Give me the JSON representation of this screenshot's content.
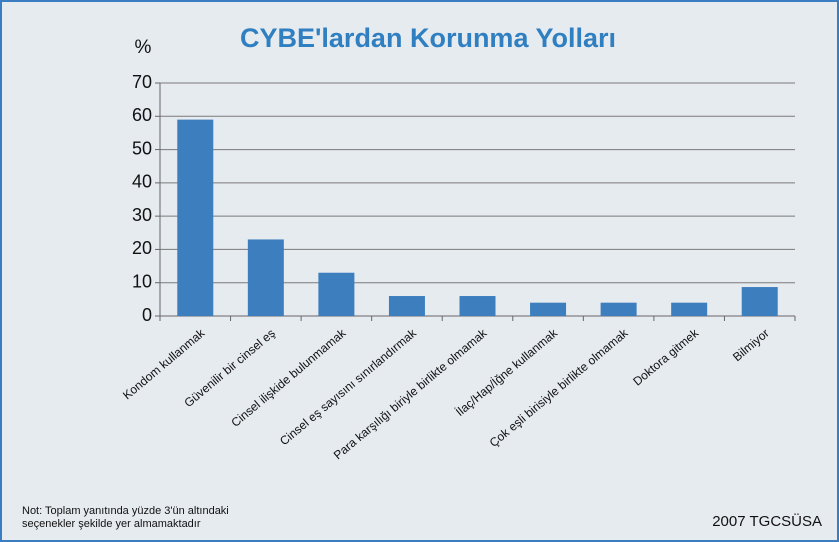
{
  "chart_data": {
    "type": "bar",
    "title": "CYBE'lardan Korunma Yolları",
    "y_label": "%",
    "categories": [
      "Kondom kullanmak",
      "Güvenilir bir cinsel eş",
      "Cinsel ilişkide bulunmamak",
      "Cinsel eş sayısını sınırlandırmak",
      "Para karşılığı biriyle birlikte olmamak",
      "İlaç/Hap/İğne kullanmak",
      "Çok eşli birisiyle birlikte olmamak",
      "Doktora gitmek",
      "Bilmiyor"
    ],
    "values": [
      59,
      23,
      13,
      6,
      6,
      4,
      4,
      4,
      8.7
    ],
    "color": "#3d7ebf",
    "ylim": [
      0,
      70
    ],
    "yticks": [
      0,
      10,
      20,
      30,
      40,
      50,
      60,
      70
    ],
    "grid": true,
    "note": [
      "Not: Toplam yanıtında yüzde 3'ün altındaki",
      "seçenekler şekilde yer  almamaktadır"
    ],
    "source": "2007 TGCSÜSA"
  }
}
